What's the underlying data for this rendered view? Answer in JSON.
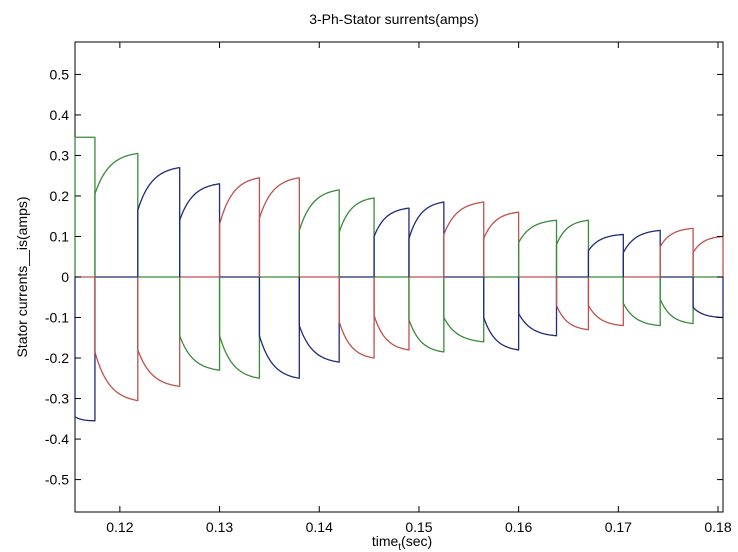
{
  "chart_data": {
    "type": "line",
    "title": "3-Ph-Stator surrents(amps)",
    "xlabel_main": "time",
    "xlabel_subscript": "t",
    "xlabel_suffix": "(sec)",
    "ylabel": "Stator currents__is(amps)",
    "xlim": [
      0.1155,
      0.1805
    ],
    "ylim": [
      -0.58,
      0.58
    ],
    "x_ticks": [
      0.12,
      0.13,
      0.14,
      0.15,
      0.16,
      0.17,
      0.18
    ],
    "x_tick_labels": [
      "0.12",
      "0.13",
      "0.14",
      "0.15",
      "0.16",
      "0.17",
      "0.18"
    ],
    "y_ticks": [
      0.5,
      0.4,
      0.3,
      0.2,
      0.1,
      0,
      -0.1,
      -0.2,
      -0.3,
      -0.4,
      -0.5
    ],
    "y_tick_labels": [
      "0.5",
      "0.4",
      "0.3",
      "0.2",
      "0.1",
      "0",
      "-0.1",
      "-0.2",
      "-0.3",
      "-0.4",
      "-0.5"
    ],
    "grid": false,
    "legend": false,
    "waveform": {
      "switch_times": [
        0.1155,
        0.1175,
        0.1218,
        0.126,
        0.13,
        0.134,
        0.138,
        0.142,
        0.1455,
        0.149,
        0.1525,
        0.1565,
        0.16,
        0.1638,
        0.167,
        0.1705,
        0.1742,
        0.1775,
        0.1805
      ],
      "positive_segments": [
        {
          "phase": "green",
          "start": 0.345,
          "end": 0.345
        },
        {
          "phase": "green",
          "start": 0.205,
          "end": 0.305
        },
        {
          "phase": "blue",
          "start": 0.165,
          "end": 0.27
        },
        {
          "phase": "blue",
          "start": 0.14,
          "end": 0.23
        },
        {
          "phase": "red",
          "start": 0.13,
          "end": 0.245
        },
        {
          "phase": "red",
          "start": 0.145,
          "end": 0.245
        },
        {
          "phase": "green",
          "start": 0.115,
          "end": 0.215
        },
        {
          "phase": "green",
          "start": 0.11,
          "end": 0.195
        },
        {
          "phase": "blue",
          "start": 0.1,
          "end": 0.17
        },
        {
          "phase": "blue",
          "start": 0.095,
          "end": 0.185
        },
        {
          "phase": "red",
          "start": 0.105,
          "end": 0.185
        },
        {
          "phase": "red",
          "start": 0.095,
          "end": 0.16
        },
        {
          "phase": "green",
          "start": 0.085,
          "end": 0.14
        },
        {
          "phase": "green",
          "start": 0.08,
          "end": 0.14
        },
        {
          "phase": "blue",
          "start": 0.065,
          "end": 0.105
        },
        {
          "phase": "blue",
          "start": 0.06,
          "end": 0.115
        },
        {
          "phase": "red",
          "start": 0.075,
          "end": 0.12
        },
        {
          "phase": "red",
          "start": 0.06,
          "end": 0.1
        }
      ],
      "negative_segments": [
        {
          "phase": "blue",
          "start": -0.345,
          "end": -0.355
        },
        {
          "phase": "red",
          "start": -0.185,
          "end": -0.305
        },
        {
          "phase": "red",
          "start": -0.18,
          "end": -0.27
        },
        {
          "phase": "green",
          "start": -0.145,
          "end": -0.23
        },
        {
          "phase": "green",
          "start": -0.145,
          "end": -0.25
        },
        {
          "phase": "blue",
          "start": -0.145,
          "end": -0.25
        },
        {
          "phase": "blue",
          "start": -0.12,
          "end": -0.21
        },
        {
          "phase": "red",
          "start": -0.11,
          "end": -0.2
        },
        {
          "phase": "red",
          "start": -0.095,
          "end": -0.18
        },
        {
          "phase": "green",
          "start": -0.105,
          "end": -0.185
        },
        {
          "phase": "green",
          "start": -0.1,
          "end": -0.16
        },
        {
          "phase": "blue",
          "start": -0.1,
          "end": -0.18
        },
        {
          "phase": "blue",
          "start": -0.09,
          "end": -0.145
        },
        {
          "phase": "red",
          "start": -0.07,
          "end": -0.13
        },
        {
          "phase": "red",
          "start": -0.07,
          "end": -0.12
        },
        {
          "phase": "green",
          "start": -0.065,
          "end": -0.12
        },
        {
          "phase": "green",
          "start": -0.055,
          "end": -0.115
        },
        {
          "phase": "blue",
          "start": -0.075,
          "end": -0.1
        }
      ]
    },
    "colors": {
      "red": "#c0504d",
      "green": "#3a8a3a",
      "blue": "#1f2a7a"
    }
  }
}
